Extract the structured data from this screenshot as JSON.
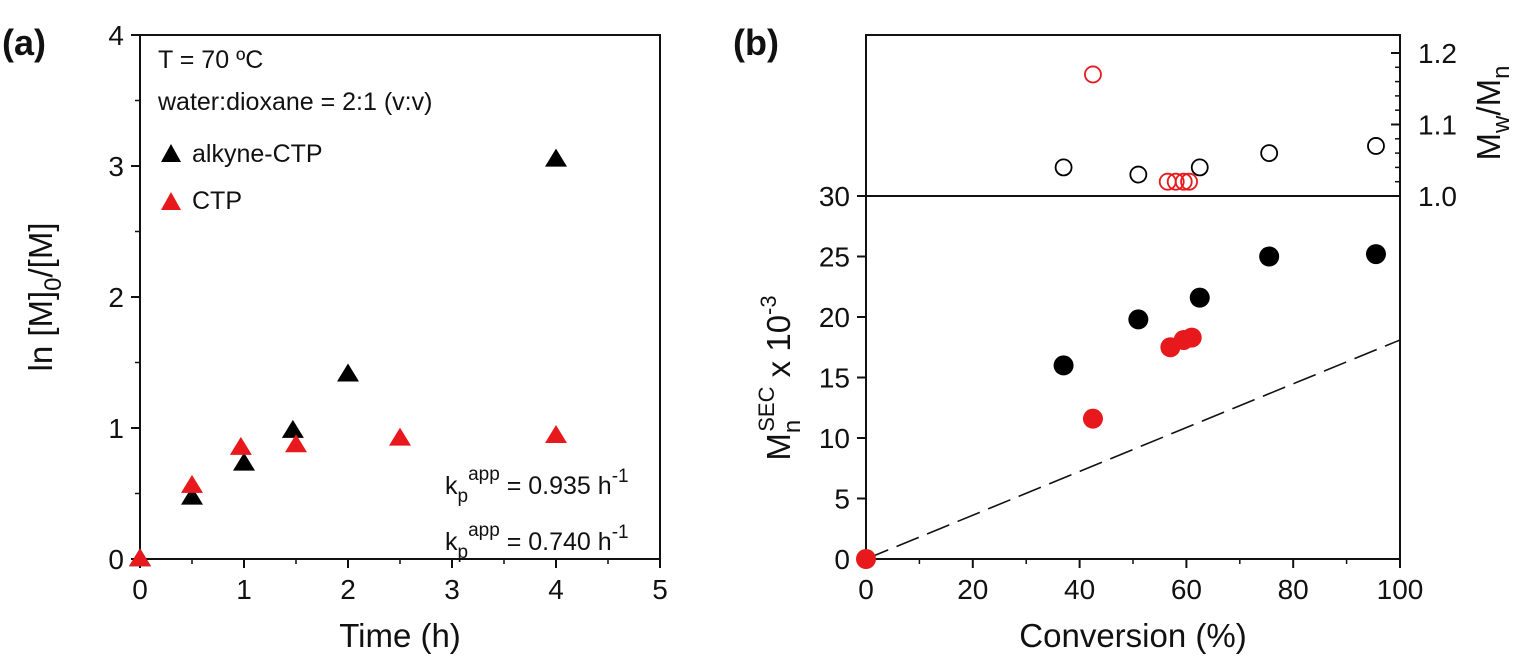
{
  "chart_data": [
    {
      "panel": "(a)",
      "type": "scatter",
      "xlabel": "Time (h)",
      "ylabel": {
        "base": "ln [M]",
        "sub": "0",
        "rest": "/[M]"
      },
      "xlim": [
        0,
        5
      ],
      "ylim": [
        0,
        4
      ],
      "x_ticks": [
        "0",
        "1",
        "2",
        "3",
        "4",
        "5"
      ],
      "y_ticks": [
        "0",
        "1",
        "2",
        "3",
        "4"
      ],
      "conditions": [
        "T = 70 ºC",
        "water:dioxane = 2:1 (v:v)"
      ],
      "legend_position": "top-left",
      "series": [
        {
          "name": "alkyne-CTP",
          "marker": "triangle",
          "color": "#000000",
          "x": [
            0,
            0.5,
            1,
            1.47,
            2,
            4
          ],
          "y": [
            0,
            0.47,
            0.73,
            0.98,
            1.41,
            3.05
          ]
        },
        {
          "name": "CTP",
          "marker": "triangle",
          "color": "#e8191d",
          "x": [
            0,
            0.5,
            0.97,
            1.5,
            2.5,
            4
          ],
          "y": [
            0,
            0.56,
            0.85,
            0.87,
            0.92,
            0.94
          ]
        }
      ],
      "rate_labels": [
        {
          "base": "k",
          "sub": "p",
          "sup": "app",
          "mid": " = 0.935 h",
          "exp": "-1",
          "color": "#e8191d"
        },
        {
          "base": "k",
          "sub": "p",
          "sup": "app",
          "mid": " = 0.740 h",
          "exp": "-1",
          "color": "#000000"
        }
      ]
    },
    {
      "panel": "(b)",
      "type": "scatter",
      "xlabel": "Conversion (%)",
      "xlim": [
        0,
        100
      ],
      "x_ticks": [
        "0",
        "20",
        "40",
        "60",
        "80",
        "100"
      ],
      "lower": {
        "ylabel": {
          "base": "M",
          "sub": "n",
          "sup": "SEC",
          "rest": " x 10",
          "exp": "-3"
        },
        "ylim": [
          0,
          30
        ],
        "y_ticks": [
          "0",
          "5",
          "10",
          "15",
          "20",
          "25",
          "30"
        ],
        "theory_line": {
          "x": [
            0,
            100
          ],
          "y": [
            0,
            18.1
          ],
          "style": "dashed"
        },
        "series": [
          {
            "marker": "filled-circle",
            "color": "#000000",
            "x": [
              37,
              51,
              62.5,
              75.5,
              95.5
            ],
            "y": [
              16.0,
              19.8,
              21.6,
              25.0,
              25.2
            ]
          },
          {
            "marker": "filled-circle",
            "color": "#e8191d",
            "x": [
              0,
              42.5,
              57,
              59.5,
              61
            ],
            "y": [
              0,
              11.6,
              17.5,
              18.1,
              18.3
            ]
          }
        ]
      },
      "upper": {
        "ylabel": {
          "base": "M",
          "sub1": "w",
          "mid": "/M",
          "sub2": "n"
        },
        "ylim": [
          1.0,
          1.2
        ],
        "y_ticks": [
          "1.0",
          "1.1",
          "1.2"
        ],
        "series": [
          {
            "marker": "open-circle",
            "color": "#000000",
            "x": [
              37,
              51,
              62.5,
              75.5,
              95.5
            ],
            "y": [
              1.04,
              1.03,
              1.04,
              1.06,
              1.07
            ]
          },
          {
            "marker": "open-circle",
            "color": "#e8191d",
            "x": [
              42.5,
              56.5,
              58,
              59.5,
              60.5
            ],
            "y": [
              1.17,
              1.02,
              1.02,
              1.02,
              1.02
            ]
          }
        ]
      }
    }
  ]
}
